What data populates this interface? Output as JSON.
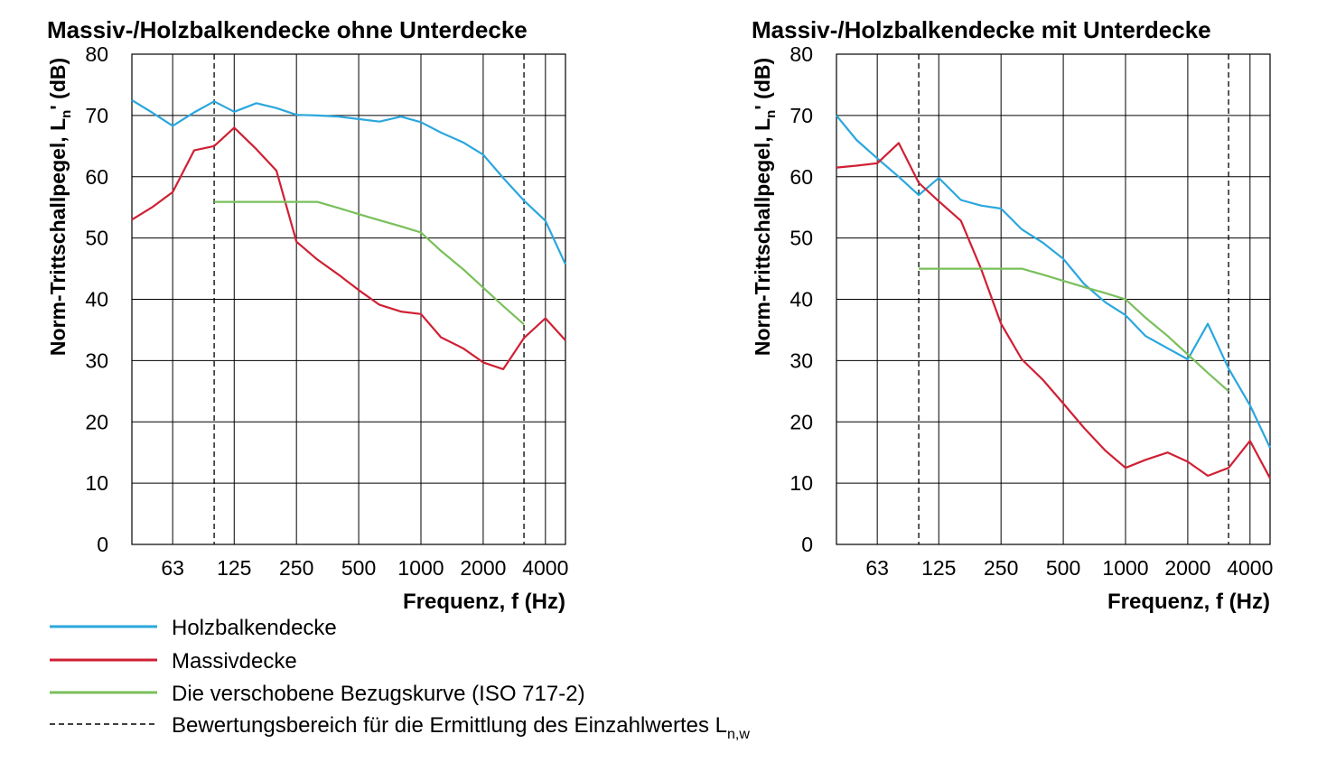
{
  "chart_data": [
    {
      "type": "line",
      "title": "Massiv-/Holzbalkendecke ohne Unterdecke",
      "ylabel": "Norm-Trittschallpegel, L",
      "ylabel_sub": "n",
      "ylabel_suffix": "' (dB)",
      "xlabel": "Frequenz, f (Hz)",
      "xscale": "log",
      "xlim": [
        40,
        5000
      ],
      "ylim": [
        0,
        80
      ],
      "yticks": [
        0,
        10,
        20,
        30,
        40,
        50,
        60,
        70,
        80
      ],
      "xtick_labels": [
        "63",
        "125",
        "250",
        "500",
        "1000",
        "2000",
        "4000"
      ],
      "xtick_values": [
        63,
        125,
        250,
        500,
        1000,
        2000,
        4000
      ],
      "grid_x": [
        63,
        125,
        250,
        500,
        1000,
        2000,
        4000
      ],
      "eval_range": [
        100,
        3150
      ],
      "series": [
        {
          "name": "Holzbalkendecke",
          "color": "#2aa7de",
          "x": [
            40,
            50,
            63,
            80,
            100,
            125,
            160,
            200,
            250,
            315,
            400,
            500,
            630,
            800,
            1000,
            1250,
            1600,
            2000,
            2500,
            3150,
            4000,
            5000
          ],
          "y": [
            72.5,
            70.5,
            68.3,
            70.5,
            72.3,
            70.6,
            72.0,
            71.2,
            70.1,
            70.0,
            69.8,
            69.4,
            69.0,
            69.8,
            68.9,
            67.2,
            65.6,
            63.6,
            59.8,
            56.1,
            52.8,
            45.7
          ]
        },
        {
          "name": "Massivdecke",
          "color": "#cf2034",
          "x": [
            40,
            50,
            63,
            80,
            100,
            125,
            160,
            200,
            250,
            315,
            400,
            500,
            630,
            800,
            1000,
            1250,
            1600,
            2000,
            2500,
            3150,
            4000,
            5000
          ],
          "y": [
            53.0,
            55.0,
            57.5,
            64.3,
            65.0,
            68.0,
            64.5,
            61.0,
            49.4,
            46.5,
            44.0,
            41.5,
            39.1,
            38.0,
            37.6,
            33.8,
            32.0,
            29.7,
            28.6,
            33.7,
            36.9,
            33.3
          ]
        },
        {
          "name": "Die verschobene Bezugskurve (ISO 717-2)",
          "color": "#79bf5a",
          "x": [
            100,
            125,
            160,
            200,
            250,
            315,
            400,
            500,
            630,
            800,
            1000,
            1250,
            1600,
            2000,
            2500,
            3150
          ],
          "y": [
            55.9,
            55.9,
            55.9,
            55.9,
            55.9,
            55.9,
            54.9,
            53.9,
            52.9,
            51.9,
            50.9,
            47.9,
            44.9,
            41.9,
            38.9,
            35.9
          ]
        }
      ]
    },
    {
      "type": "line",
      "title": "Massiv-/Holzbalkendecke mit Unterdecke",
      "ylabel": "Norm-Trittschallpegel, L",
      "ylabel_sub": "n",
      "ylabel_suffix": "' (dB)",
      "xlabel": "Frequenz, f (Hz)",
      "xscale": "log",
      "xlim": [
        40,
        5000
      ],
      "ylim": [
        0,
        80
      ],
      "yticks": [
        0,
        10,
        20,
        30,
        40,
        50,
        60,
        70,
        80
      ],
      "xtick_labels": [
        "63",
        "125",
        "250",
        "500",
        "1000",
        "2000",
        "4000"
      ],
      "xtick_values": [
        63,
        125,
        250,
        500,
        1000,
        2000,
        4000
      ],
      "grid_x": [
        63,
        125,
        250,
        500,
        1000,
        2000,
        4000
      ],
      "eval_range": [
        100,
        3150
      ],
      "series": [
        {
          "name": "Holzbalkendecke",
          "color": "#2aa7de",
          "x": [
            40,
            50,
            63,
            80,
            100,
            125,
            160,
            200,
            250,
            315,
            400,
            500,
            630,
            800,
            1000,
            1250,
            1600,
            2000,
            2500,
            3150,
            4000,
            5000
          ],
          "y": [
            70.0,
            66.0,
            63.0,
            60.0,
            57.0,
            59.8,
            56.2,
            55.3,
            54.8,
            51.4,
            49.2,
            46.6,
            42.5,
            39.5,
            37.4,
            34.0,
            32.0,
            30.2,
            36.0,
            28.7,
            22.7,
            15.8
          ]
        },
        {
          "name": "Massivdecke",
          "color": "#cf2034",
          "x": [
            40,
            50,
            63,
            80,
            100,
            125,
            160,
            200,
            250,
            315,
            400,
            500,
            630,
            800,
            1000,
            1250,
            1600,
            2000,
            2500,
            3150,
            4000,
            5000
          ],
          "y": [
            61.5,
            61.8,
            62.2,
            65.5,
            59.0,
            56.0,
            52.8,
            45.0,
            36.0,
            30.2,
            26.8,
            23.0,
            19.0,
            15.3,
            12.5,
            13.8,
            15.0,
            13.5,
            11.2,
            12.5,
            16.9,
            10.8
          ]
        },
        {
          "name": "Die verschobene Bezugskurve (ISO 717-2)",
          "color": "#79bf5a",
          "x": [
            100,
            125,
            160,
            200,
            250,
            315,
            400,
            500,
            630,
            800,
            1000,
            1250,
            1600,
            2000,
            2500,
            3150
          ],
          "y": [
            45.0,
            45.0,
            45.0,
            45.0,
            45.0,
            45.0,
            44.0,
            43.0,
            42.0,
            41.0,
            40.0,
            37.0,
            34.0,
            31.0,
            28.0,
            25.0
          ]
        }
      ]
    }
  ],
  "legend": [
    {
      "label": "Holzbalkendecke",
      "color": "#2aa7de",
      "style": "solid"
    },
    {
      "label": "Massivdecke",
      "color": "#cf2034",
      "style": "solid"
    },
    {
      "label": "Die verschobene Bezugskurve (ISO 717-2)",
      "color": "#79bf5a",
      "style": "solid"
    },
    {
      "label": "Bewertungsbereich für die Ermittlung des Einzahlwertes L",
      "label_sub": "n,w",
      "color": "#000000",
      "style": "dashed"
    }
  ]
}
